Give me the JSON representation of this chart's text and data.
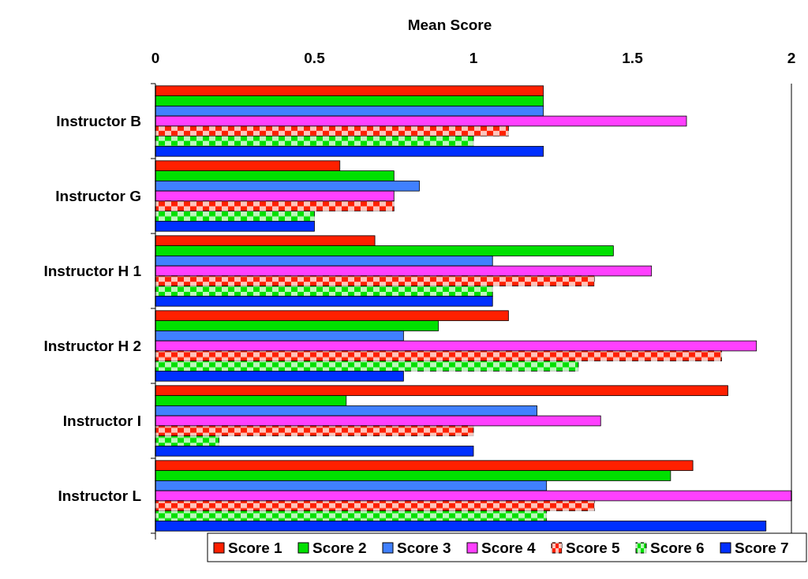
{
  "chart_data": {
    "type": "bar",
    "orientation": "horizontal",
    "xlabel": "Mean Score",
    "categories": [
      "Instructor B",
      "Instructor G",
      "Instructor H 1",
      "Instructor H 2",
      "Instructor I",
      "Instructor L"
    ],
    "xlim": [
      0,
      2
    ],
    "xticks": [
      0,
      0.5,
      1,
      1.5,
      2
    ],
    "grid": false,
    "legend": "bottom",
    "series": [
      {
        "name": "Score 1",
        "color": "#ff2000",
        "values": [
          1.22,
          0.58,
          0.69,
          1.11,
          1.8,
          1.69
        ]
      },
      {
        "name": "Score 2",
        "color": "#00e000",
        "values": [
          1.22,
          0.75,
          1.44,
          0.89,
          0.6,
          1.62
        ]
      },
      {
        "name": "Score 3",
        "color": "#4080ff",
        "values": [
          1.22,
          0.83,
          1.06,
          0.78,
          1.2,
          1.23
        ]
      },
      {
        "name": "Score 4",
        "color": "#ff40ff",
        "values": [
          1.67,
          0.75,
          1.56,
          1.89,
          1.4,
          2
        ]
      },
      {
        "name": "Score 5",
        "color": "#ff2000",
        "values": [
          1.11,
          0.75,
          1.38,
          1.78,
          1.0,
          1.38
        ]
      },
      {
        "name": "Score 6",
        "color": "#00e000",
        "values": [
          1.0,
          0.5,
          1.06,
          1.33,
          0.2,
          1.23
        ]
      },
      {
        "name": "Score 7",
        "color": "#0030ff",
        "values": [
          1.22,
          0.5,
          1.06,
          0.78,
          1.0,
          1.92
        ]
      }
    ]
  }
}
